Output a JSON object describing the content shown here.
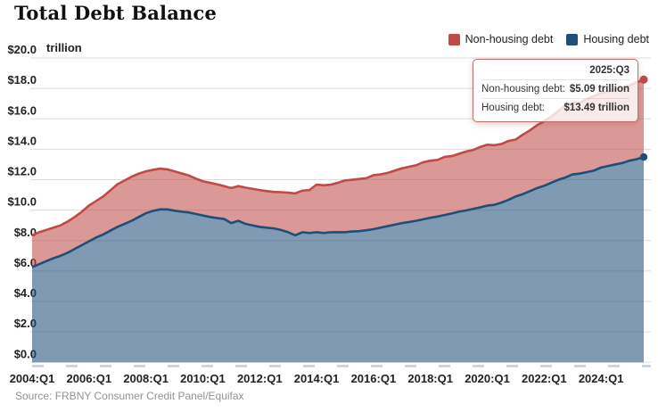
{
  "title": "Total Debt Balance",
  "y_axis": {
    "unit": "trillion"
  },
  "legend": {
    "items": [
      {
        "label": "Non-housing debt",
        "color": "#be4b48"
      },
      {
        "label": "Housing debt",
        "color": "#1f4e79"
      }
    ]
  },
  "tooltip": {
    "period": "2025:Q3",
    "rows": [
      {
        "label": "Non-housing debt:",
        "value": "$5.09 trillion"
      },
      {
        "label": "Housing debt:",
        "value": "$13.49 trillion"
      }
    ]
  },
  "source": "Source: FRBNY Consumer Credit Panel/Equifax",
  "chart_data": {
    "type": "area",
    "stacked": true,
    "title": "Total Debt Balance",
    "x_start": "2004:Q1",
    "x_end": "2025:Q3",
    "x_frequency": "quarterly",
    "x_tick_labels": [
      "2004:Q1",
      "2006:Q1",
      "2008:Q1",
      "2010:Q1",
      "2012:Q1",
      "2014:Q1",
      "2016:Q1",
      "2018:Q1",
      "2020:Q1",
      "2022:Q1",
      "2024:Q1"
    ],
    "x_tick_every_quarters": 8,
    "y_ticks": [
      0,
      2,
      4,
      6,
      8,
      10,
      12,
      14,
      16,
      18,
      20
    ],
    "ylim": [
      0,
      20
    ],
    "y_unit": "$ trillion",
    "grid": "horizontal",
    "legend_position": "top-right",
    "series": [
      {
        "name": "Housing debt",
        "color": "#1f4e79",
        "values": [
          6.25,
          6.45,
          6.65,
          6.84,
          7.0,
          7.2,
          7.45,
          7.7,
          7.95,
          8.2,
          8.4,
          8.65,
          8.9,
          9.1,
          9.3,
          9.55,
          9.8,
          9.95,
          10.05,
          10.05,
          9.97,
          9.9,
          9.85,
          9.75,
          9.65,
          9.55,
          9.48,
          9.42,
          9.15,
          9.3,
          9.1,
          9.0,
          8.9,
          8.85,
          8.8,
          8.7,
          8.55,
          8.35,
          8.55,
          8.5,
          8.55,
          8.5,
          8.55,
          8.55,
          8.55,
          8.6,
          8.62,
          8.68,
          8.75,
          8.85,
          8.95,
          9.05,
          9.15,
          9.22,
          9.3,
          9.4,
          9.5,
          9.58,
          9.68,
          9.78,
          9.9,
          9.98,
          10.08,
          10.18,
          10.3,
          10.35,
          10.5,
          10.68,
          10.9,
          11.05,
          11.25,
          11.45,
          11.6,
          11.8,
          12.0,
          12.15,
          12.35,
          12.4,
          12.5,
          12.6,
          12.8,
          12.9,
          13.0,
          13.1,
          13.25,
          13.35,
          13.49
        ]
      },
      {
        "name": "Non-housing debt",
        "color": "#be4b48",
        "values": [
          2.1,
          2.1,
          2.05,
          2.01,
          2.0,
          2.05,
          2.1,
          2.2,
          2.35,
          2.4,
          2.5,
          2.65,
          2.8,
          2.85,
          2.9,
          2.85,
          2.75,
          2.7,
          2.68,
          2.63,
          2.58,
          2.52,
          2.43,
          2.33,
          2.25,
          2.25,
          2.22,
          2.16,
          2.3,
          2.28,
          2.38,
          2.4,
          2.42,
          2.4,
          2.4,
          2.48,
          2.6,
          2.75,
          2.73,
          2.82,
          3.13,
          3.13,
          3.13,
          3.25,
          3.4,
          3.4,
          3.43,
          3.42,
          3.55,
          3.5,
          3.5,
          3.55,
          3.6,
          3.63,
          3.65,
          3.75,
          3.75,
          3.72,
          3.82,
          3.77,
          3.8,
          3.87,
          3.87,
          3.97,
          4.0,
          3.92,
          3.85,
          3.87,
          3.74,
          3.91,
          3.99,
          4.13,
          4.24,
          4.35,
          4.51,
          4.75,
          4.7,
          4.66,
          4.79,
          4.9,
          4.89,
          4.9,
          4.94,
          4.94,
          4.95,
          5.04,
          5.09
        ]
      }
    ]
  }
}
